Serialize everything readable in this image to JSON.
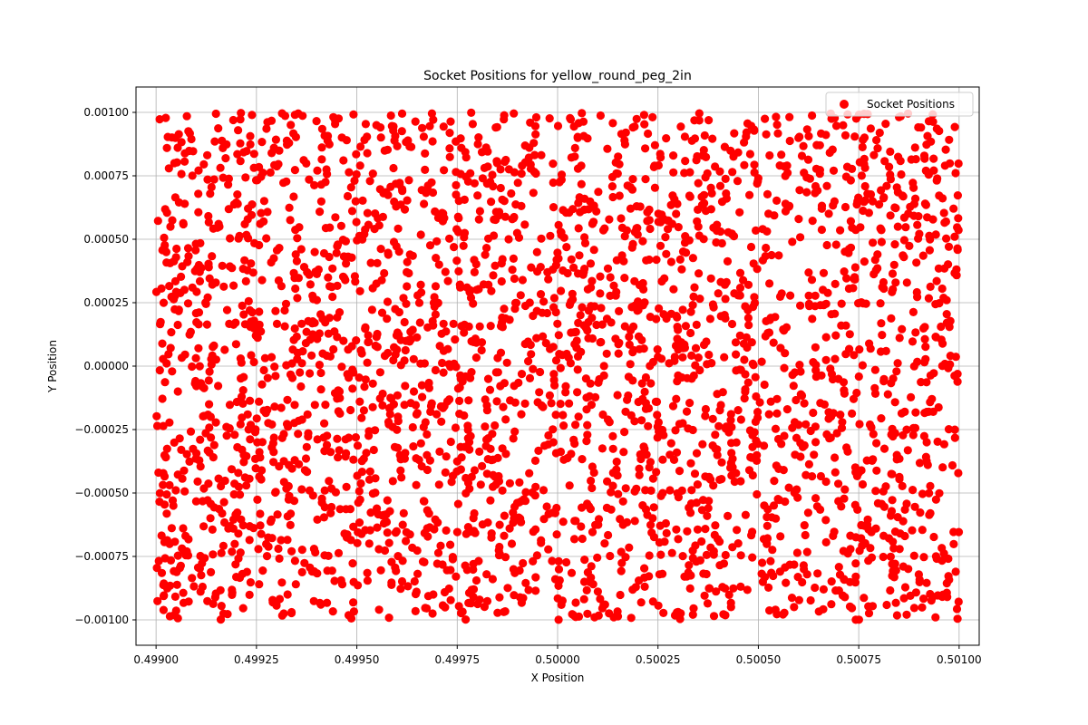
{
  "chart_data": {
    "type": "scatter",
    "title": "Socket Positions for yellow_round_peg_2in",
    "xlabel": "X Position",
    "ylabel": "Y Position",
    "xlim": [
      0.49895,
      0.50105
    ],
    "ylim": [
      -0.0011,
      0.0011
    ],
    "xticks": [
      0.499,
      0.49925,
      0.4995,
      0.49975,
      0.5,
      0.50025,
      0.5005,
      0.50075,
      0.501
    ],
    "xtick_labels": [
      "0.49900",
      "0.49925",
      "0.49950",
      "0.49975",
      "0.50000",
      "0.50025",
      "0.50050",
      "0.50075",
      "0.50100"
    ],
    "yticks": [
      -0.001,
      -0.00075,
      -0.0005,
      -0.00025,
      0.0,
      0.00025,
      0.0005,
      0.00075,
      0.001
    ],
    "ytick_labels": [
      "−0.00100",
      "−0.00075",
      "−0.00050",
      "−0.00025",
      "0.00000",
      "0.00025",
      "0.00050",
      "0.00075",
      "0.00100"
    ],
    "grid": true,
    "legend_position": "top-right",
    "series": [
      {
        "name": "Socket Positions",
        "color": "#ff0000",
        "point_count": 3000,
        "distribution": "uniform",
        "x_range": [
          0.499,
          0.501
        ],
        "y_range": [
          -0.001,
          0.001
        ]
      }
    ]
  }
}
